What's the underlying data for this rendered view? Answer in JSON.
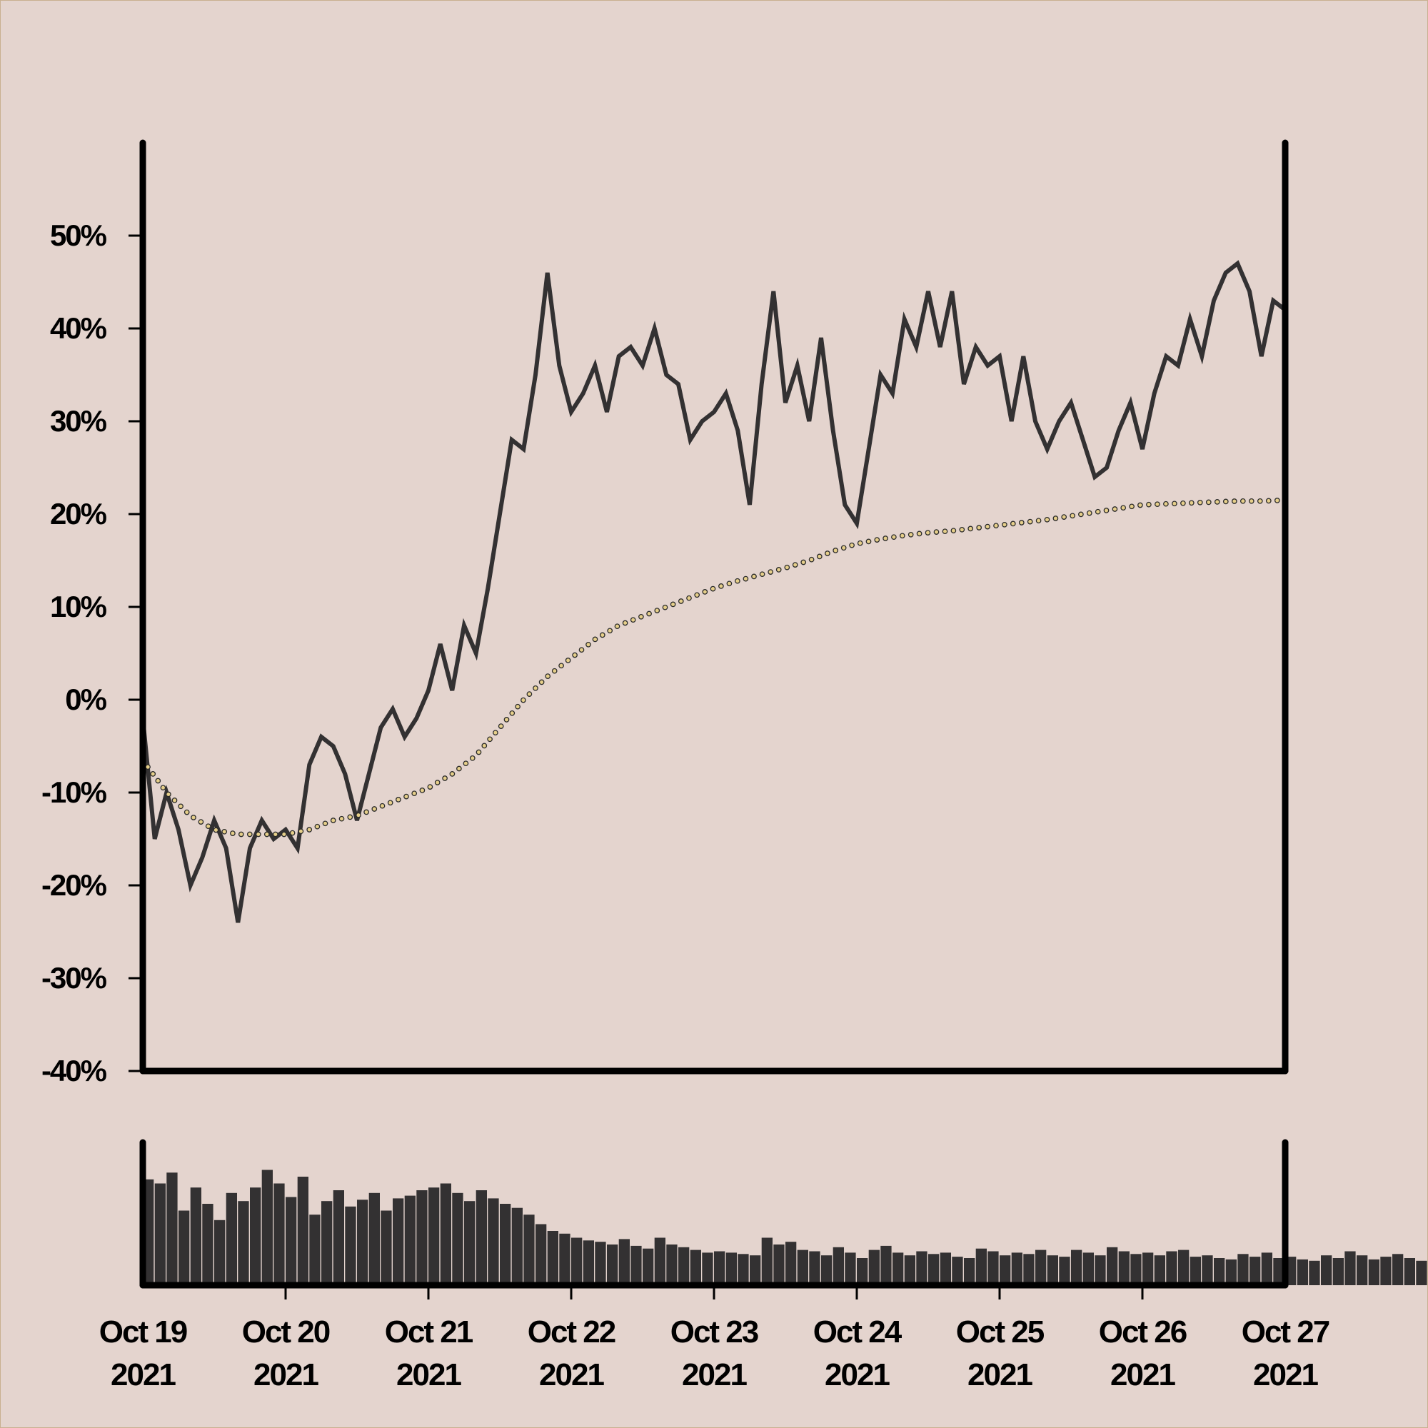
{
  "chart_data": {
    "type": "line",
    "title": "",
    "xlabel": "",
    "ylabel": "",
    "ylim": [
      -40,
      60
    ],
    "y_ticks": [
      "-40%",
      "-30%",
      "-20%",
      "-10%",
      "0%",
      "10%",
      "20%",
      "30%",
      "40%",
      "50%"
    ],
    "x_ticks": [
      {
        "date": "2021-10-19",
        "line1": "Oct 19",
        "line2": "2021"
      },
      {
        "date": "2021-10-20",
        "line1": "Oct 20",
        "line2": "2021"
      },
      {
        "date": "2021-10-21",
        "line1": "Oct 21",
        "line2": "2021"
      },
      {
        "date": "2021-10-22",
        "line1": "Oct 22",
        "line2": "2021"
      },
      {
        "date": "2021-10-23",
        "line1": "Oct 23",
        "line2": "2021"
      },
      {
        "date": "2021-10-24",
        "line1": "Oct 24",
        "line2": "2021"
      },
      {
        "date": "2021-10-25",
        "line1": "Oct 25",
        "line2": "2021"
      },
      {
        "date": "2021-10-26",
        "line1": "Oct 26",
        "line2": "2021"
      },
      {
        "date": "2021-10-27",
        "line1": "Oct 27",
        "line2": "2021"
      }
    ],
    "xlim": [
      "2021-10-19",
      "2021-10-27"
    ],
    "grid": false,
    "legend": "none",
    "series": [
      {
        "role": "price",
        "style": "solid",
        "color": "#333132",
        "points": [
          [
            "2021-10-19 00:00",
            -2
          ],
          [
            "2021-10-19 02:00",
            -15
          ],
          [
            "2021-10-19 04:00",
            -10
          ],
          [
            "2021-10-19 06:00",
            -14
          ],
          [
            "2021-10-19 08:00",
            -20
          ],
          [
            "2021-10-19 10:00",
            -17
          ],
          [
            "2021-10-19 12:00",
            -13
          ],
          [
            "2021-10-19 14:00",
            -16
          ],
          [
            "2021-10-19 16:00",
            -24
          ],
          [
            "2021-10-19 18:00",
            -16
          ],
          [
            "2021-10-19 20:00",
            -13
          ],
          [
            "2021-10-19 22:00",
            -15
          ],
          [
            "2021-10-20 00:00",
            -14
          ],
          [
            "2021-10-20 02:00",
            -16
          ],
          [
            "2021-10-20 04:00",
            -7
          ],
          [
            "2021-10-20 06:00",
            -4
          ],
          [
            "2021-10-20 08:00",
            -5
          ],
          [
            "2021-10-20 10:00",
            -8
          ],
          [
            "2021-10-20 12:00",
            -13
          ],
          [
            "2021-10-20 14:00",
            -8
          ],
          [
            "2021-10-20 16:00",
            -3
          ],
          [
            "2021-10-20 18:00",
            -1
          ],
          [
            "2021-10-20 20:00",
            -4
          ],
          [
            "2021-10-20 22:00",
            -2
          ],
          [
            "2021-10-21 00:00",
            1
          ],
          [
            "2021-10-21 02:00",
            6
          ],
          [
            "2021-10-21 04:00",
            1
          ],
          [
            "2021-10-21 06:00",
            8
          ],
          [
            "2021-10-21 08:00",
            5
          ],
          [
            "2021-10-21 10:00",
            12
          ],
          [
            "2021-10-21 12:00",
            20
          ],
          [
            "2021-10-21 14:00",
            28
          ],
          [
            "2021-10-21 16:00",
            27
          ],
          [
            "2021-10-21 18:00",
            35
          ],
          [
            "2021-10-21 20:00",
            46
          ],
          [
            "2021-10-21 22:00",
            36
          ],
          [
            "2021-10-22 00:00",
            31
          ],
          [
            "2021-10-22 02:00",
            33
          ],
          [
            "2021-10-22 04:00",
            36
          ],
          [
            "2021-10-22 06:00",
            31
          ],
          [
            "2021-10-22 08:00",
            37
          ],
          [
            "2021-10-22 10:00",
            38
          ],
          [
            "2021-10-22 12:00",
            36
          ],
          [
            "2021-10-22 14:00",
            40
          ],
          [
            "2021-10-22 16:00",
            35
          ],
          [
            "2021-10-22 18:00",
            34
          ],
          [
            "2021-10-22 20:00",
            28
          ],
          [
            "2021-10-22 22:00",
            30
          ],
          [
            "2021-10-23 00:00",
            31
          ],
          [
            "2021-10-23 02:00",
            33
          ],
          [
            "2021-10-23 04:00",
            29
          ],
          [
            "2021-10-23 06:00",
            21
          ],
          [
            "2021-10-23 08:00",
            34
          ],
          [
            "2021-10-23 10:00",
            44
          ],
          [
            "2021-10-23 12:00",
            32
          ],
          [
            "2021-10-23 14:00",
            36
          ],
          [
            "2021-10-23 16:00",
            30
          ],
          [
            "2021-10-23 18:00",
            39
          ],
          [
            "2021-10-23 20:00",
            29
          ],
          [
            "2021-10-23 22:00",
            21
          ],
          [
            "2021-10-24 00:00",
            19
          ],
          [
            "2021-10-24 02:00",
            27
          ],
          [
            "2021-10-24 04:00",
            35
          ],
          [
            "2021-10-24 06:00",
            33
          ],
          [
            "2021-10-24 08:00",
            41
          ],
          [
            "2021-10-24 10:00",
            38
          ],
          [
            "2021-10-24 12:00",
            44
          ],
          [
            "2021-10-24 14:00",
            38
          ],
          [
            "2021-10-24 16:00",
            44
          ],
          [
            "2021-10-24 18:00",
            34
          ],
          [
            "2021-10-24 20:00",
            38
          ],
          [
            "2021-10-24 22:00",
            36
          ],
          [
            "2021-10-25 00:00",
            37
          ],
          [
            "2021-10-25 02:00",
            30
          ],
          [
            "2021-10-25 04:00",
            37
          ],
          [
            "2021-10-25 06:00",
            30
          ],
          [
            "2021-10-25 08:00",
            27
          ],
          [
            "2021-10-25 10:00",
            30
          ],
          [
            "2021-10-25 12:00",
            32
          ],
          [
            "2021-10-25 14:00",
            28
          ],
          [
            "2021-10-25 16:00",
            24
          ],
          [
            "2021-10-25 18:00",
            25
          ],
          [
            "2021-10-25 20:00",
            29
          ],
          [
            "2021-10-25 22:00",
            32
          ],
          [
            "2021-10-26 00:00",
            27
          ],
          [
            "2021-10-26 02:00",
            33
          ],
          [
            "2021-10-26 04:00",
            37
          ],
          [
            "2021-10-26 06:00",
            36
          ],
          [
            "2021-10-26 08:00",
            41
          ],
          [
            "2021-10-26 10:00",
            37
          ],
          [
            "2021-10-26 12:00",
            43
          ],
          [
            "2021-10-26 14:00",
            46
          ],
          [
            "2021-10-26 16:00",
            47
          ],
          [
            "2021-10-26 18:00",
            44
          ],
          [
            "2021-10-26 20:00",
            37
          ],
          [
            "2021-10-26 22:00",
            43
          ],
          [
            "2021-10-27 00:00",
            42
          ]
        ]
      },
      {
        "role": "moving-average",
        "style": "dotted",
        "color": "#e6cf8a",
        "points": [
          [
            "2021-10-19 00:00",
            -6.5
          ],
          [
            "2021-10-19 04:00",
            -10
          ],
          [
            "2021-10-19 08:00",
            -12.5
          ],
          [
            "2021-10-19 12:00",
            -14
          ],
          [
            "2021-10-19 16:00",
            -14.5
          ],
          [
            "2021-10-19 20:00",
            -14.5
          ],
          [
            "2021-10-20 00:00",
            -14.5
          ],
          [
            "2021-10-20 04:00",
            -14
          ],
          [
            "2021-10-20 08:00",
            -13
          ],
          [
            "2021-10-20 12:00",
            -12.5
          ],
          [
            "2021-10-20 16:00",
            -11.5
          ],
          [
            "2021-10-20 20:00",
            -10.5
          ],
          [
            "2021-10-21 00:00",
            -9.5
          ],
          [
            "2021-10-21 04:00",
            -8
          ],
          [
            "2021-10-21 08:00",
            -6
          ],
          [
            "2021-10-21 12:00",
            -3
          ],
          [
            "2021-10-21 16:00",
            0
          ],
          [
            "2021-10-21 20:00",
            2.5
          ],
          [
            "2021-10-22 00:00",
            4.5
          ],
          [
            "2021-10-22 04:00",
            6.5
          ],
          [
            "2021-10-22 08:00",
            8
          ],
          [
            "2021-10-22 12:00",
            9
          ],
          [
            "2021-10-22 16:00",
            10
          ],
          [
            "2021-10-22 20:00",
            11
          ],
          [
            "2021-10-23 00:00",
            12
          ],
          [
            "2021-10-23 04:00",
            12.8
          ],
          [
            "2021-10-23 08:00",
            13.5
          ],
          [
            "2021-10-23 12:00",
            14.2
          ],
          [
            "2021-10-23 16:00",
            15
          ],
          [
            "2021-10-23 20:00",
            16
          ],
          [
            "2021-10-24 00:00",
            16.8
          ],
          [
            "2021-10-24 04:00",
            17.3
          ],
          [
            "2021-10-24 08:00",
            17.7
          ],
          [
            "2021-10-24 12:00",
            18
          ],
          [
            "2021-10-24 16:00",
            18.2
          ],
          [
            "2021-10-24 20:00",
            18.5
          ],
          [
            "2021-10-25 00:00",
            18.8
          ],
          [
            "2021-10-25 04:00",
            19.1
          ],
          [
            "2021-10-25 08:00",
            19.4
          ],
          [
            "2021-10-25 12:00",
            19.8
          ],
          [
            "2021-10-25 16:00",
            20.2
          ],
          [
            "2021-10-25 20:00",
            20.6
          ],
          [
            "2021-10-26 00:00",
            21
          ],
          [
            "2021-10-26 04:00",
            21.1
          ],
          [
            "2021-10-26 08:00",
            21.2
          ],
          [
            "2021-10-26 12:00",
            21.3
          ],
          [
            "2021-10-26 16:00",
            21.4
          ],
          [
            "2021-10-26 20:00",
            21.4
          ],
          [
            "2021-10-27 00:00",
            21.5
          ]
        ]
      }
    ],
    "volume_panel": {
      "type": "bar",
      "color": "#333132",
      "ylim": [
        0,
        100
      ],
      "bar_spacing_hours": 2,
      "values": [
        78,
        75,
        83,
        55,
        72,
        60,
        48,
        68,
        62,
        72,
        85,
        75,
        65,
        80,
        52,
        62,
        70,
        58,
        63,
        68,
        55,
        64,
        66,
        70,
        72,
        75,
        68,
        62,
        70,
        64,
        60,
        57,
        52,
        45,
        40,
        38,
        35,
        33,
        32,
        30,
        34,
        29,
        27,
        35,
        30,
        28,
        26,
        24,
        25,
        24,
        23,
        22,
        35,
        30,
        32,
        26,
        25,
        22,
        28,
        24,
        20,
        26,
        29,
        24,
        22,
        25,
        23,
        24,
        21,
        20,
        27,
        25,
        22,
        24,
        23,
        26,
        22,
        21,
        26,
        24,
        22,
        28,
        25,
        23,
        24,
        22,
        25,
        26,
        21,
        22,
        20,
        19,
        23,
        21,
        24,
        20,
        21,
        19,
        18,
        22,
        20,
        25,
        22,
        19,
        21,
        23,
        20,
        18,
        17,
        20,
        22,
        19,
        21,
        18,
        20,
        17,
        19,
        16,
        18,
        21
      ]
    }
  }
}
